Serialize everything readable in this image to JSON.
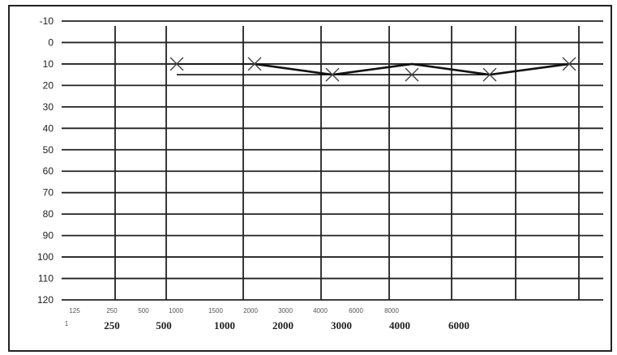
{
  "chart_data": {
    "type": "line",
    "title": "",
    "xlabel": "",
    "ylabel": "",
    "y_axis": {
      "ticks": [
        "-10",
        "0",
        "10",
        "20",
        "30",
        "40",
        "50",
        "60",
        "70",
        "80",
        "90",
        "100",
        "110",
        "120"
      ],
      "range": [
        -10,
        120
      ],
      "inverted": true
    },
    "x_axis_primary_labels": [
      "250",
      "500",
      "1000",
      "2000",
      "3000",
      "4000",
      "6000"
    ],
    "x_axis_secondary_labels": [
      "125",
      "250",
      "500",
      "1000",
      "1500",
      "2000",
      "3000",
      "4000",
      "6000",
      "8000"
    ],
    "stray_label": "1",
    "grid": true,
    "series": [
      {
        "marker": "x",
        "points": [
          {
            "x": "500",
            "y": 10
          },
          {
            "x": "1000",
            "y": 10
          },
          {
            "x": "2000",
            "y": 15
          },
          {
            "x": "3000",
            "y": 15
          },
          {
            "x": "4000",
            "y": 15
          },
          {
            "x": "8000",
            "y": 10
          }
        ]
      },
      {
        "marker": "none",
        "points": [
          {
            "x": "1000",
            "y": 10
          },
          {
            "x": "2000",
            "y": 15
          },
          {
            "x": "3000",
            "y": 10
          },
          {
            "x": "4000",
            "y": 15
          },
          {
            "x": "8000",
            "y": 10
          }
        ]
      },
      {
        "marker": "none",
        "points": [
          {
            "x": "500",
            "y": 15
          },
          {
            "x": "3000",
            "y": 15
          }
        ]
      }
    ]
  }
}
